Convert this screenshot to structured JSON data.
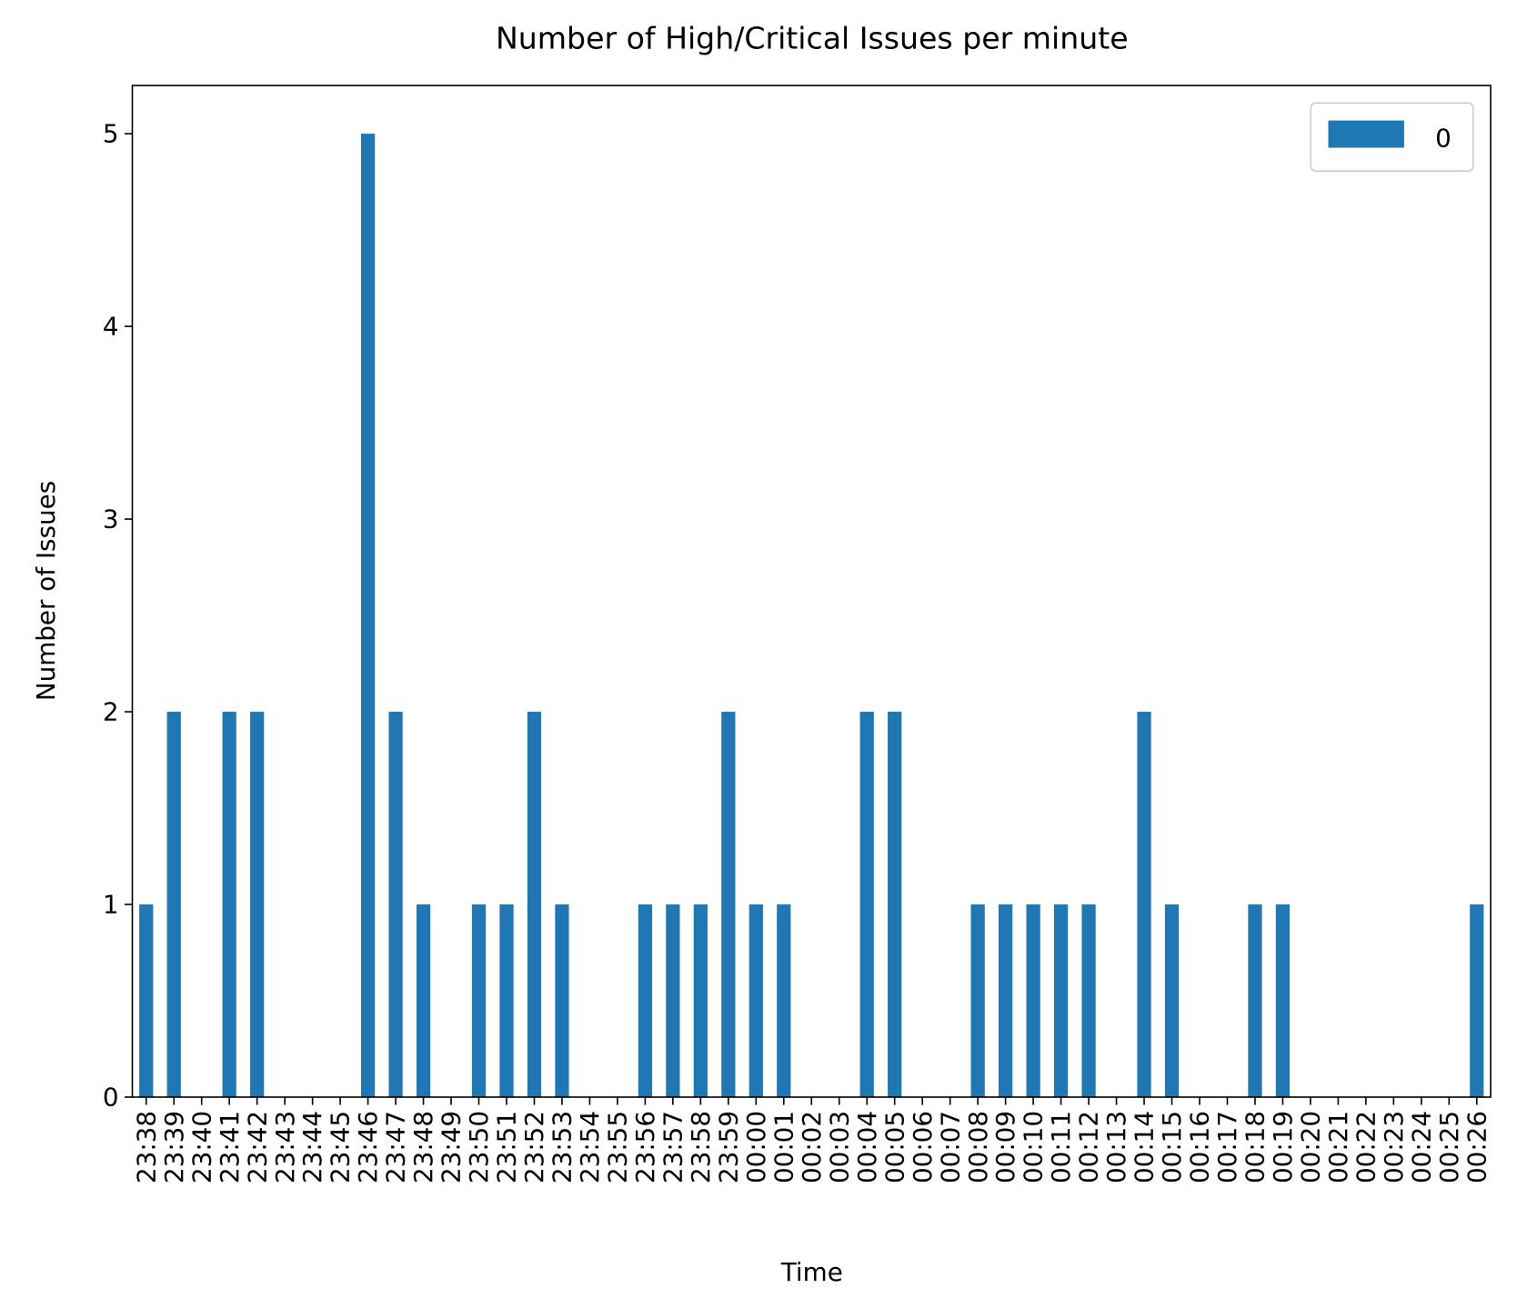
{
  "chart_data": {
    "type": "bar",
    "title": "Number of High/Critical Issues per minute",
    "x_label": "Time",
    "y_label": "Number of Issues",
    "categories": [
      "23:38",
      "23:39",
      "23:40",
      "23:41",
      "23:42",
      "23:43",
      "23:44",
      "23:45",
      "23:46",
      "23:47",
      "23:48",
      "23:49",
      "23:50",
      "23:51",
      "23:52",
      "23:53",
      "23:54",
      "23:55",
      "23:56",
      "23:57",
      "23:58",
      "23:59",
      "00:00",
      "00:01",
      "00:02",
      "00:03",
      "00:04",
      "00:05",
      "00:06",
      "00:07",
      "00:08",
      "00:09",
      "00:10",
      "00:11",
      "00:12",
      "00:13",
      "00:14",
      "00:15",
      "00:16",
      "00:17",
      "00:18",
      "00:19",
      "00:20",
      "00:21",
      "00:22",
      "00:23",
      "00:24",
      "00:25",
      "00:26"
    ],
    "series": [
      {
        "name": "0",
        "color": "#1f77b4",
        "values": [
          1,
          2,
          0,
          2,
          2,
          0,
          0,
          0,
          5,
          2,
          1,
          0,
          1,
          1,
          2,
          1,
          0,
          0,
          1,
          1,
          1,
          2,
          1,
          1,
          0,
          0,
          2,
          2,
          0,
          0,
          1,
          1,
          1,
          1,
          1,
          0,
          2,
          1,
          0,
          0,
          1,
          1,
          0,
          0,
          0,
          0,
          0,
          0,
          1
        ]
      }
    ],
    "ylim": [
      0,
      5.25
    ],
    "yticks": [
      0,
      1,
      2,
      3,
      4,
      5
    ],
    "legend": "upper right"
  }
}
